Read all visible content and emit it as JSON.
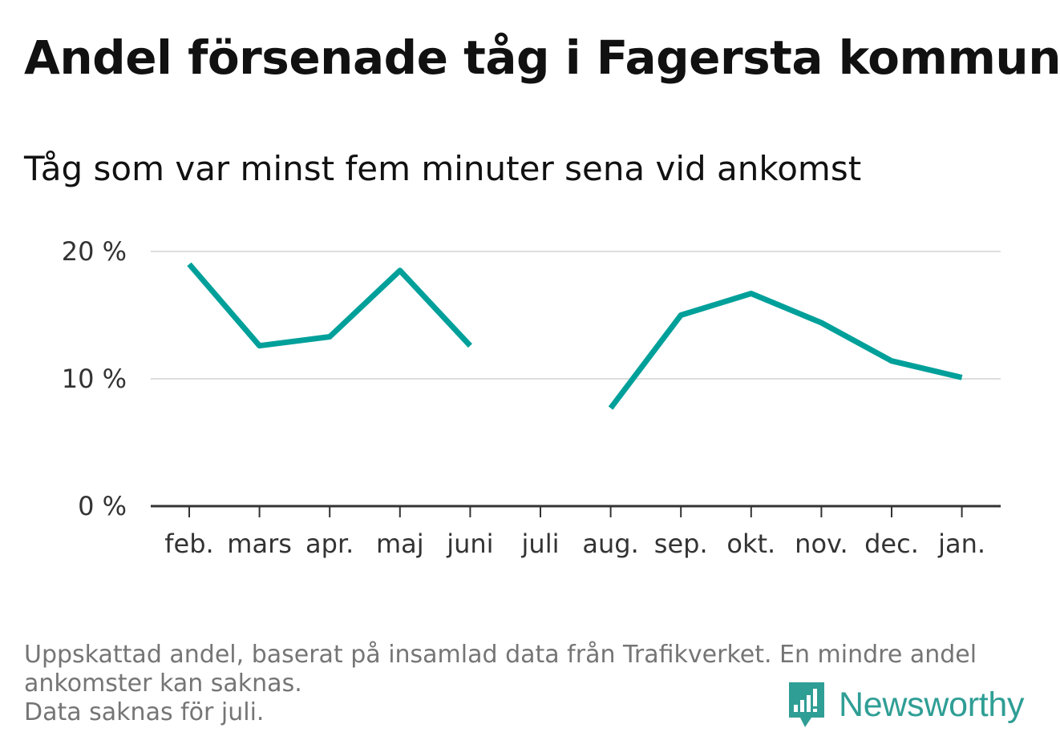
{
  "title": "Andel försenade tåg i Fagersta kommun",
  "subtitle": "Tåg som var minst fem minuter sena vid ankomst",
  "footnote": {
    "line1": "Uppskattad andel, baserat på insamlad data från Trafikverket. En mindre andel",
    "line2": "ankomster kan saknas.",
    "line3": "Data saknas för juli."
  },
  "brand": {
    "name": "Newsworthy",
    "color": "#2f9e95"
  },
  "chart_data": {
    "type": "line",
    "categories": [
      "feb.",
      "mars",
      "apr.",
      "maj",
      "juni",
      "juli",
      "aug.",
      "sep.",
      "okt.",
      "nov.",
      "dec.",
      "jan."
    ],
    "series": [
      {
        "values": [
          19.0,
          12.6,
          13.3,
          18.5,
          12.6,
          null,
          7.7,
          15.0,
          16.7,
          14.4,
          11.4,
          10.1
        ],
        "color": "#00a09a"
      }
    ],
    "yticks": [
      {
        "value": 0,
        "label": "0 %"
      },
      {
        "value": 10,
        "label": "10 %"
      },
      {
        "value": 20,
        "label": "20 %"
      }
    ],
    "ylim": [
      0,
      20
    ],
    "grid": true,
    "legend": "none"
  }
}
